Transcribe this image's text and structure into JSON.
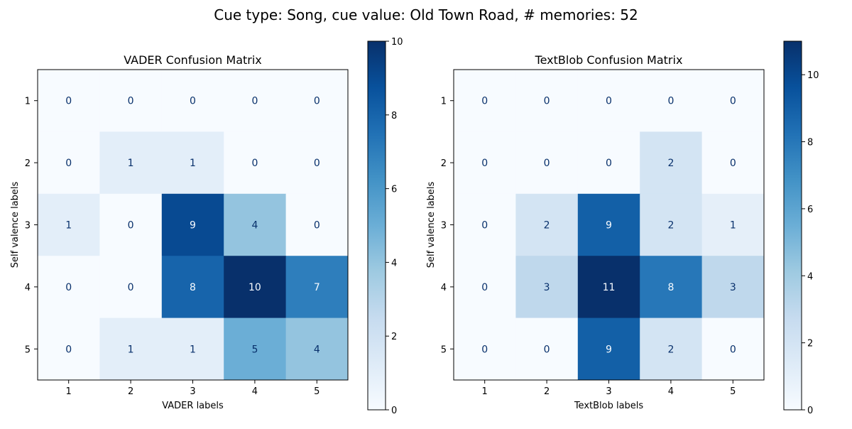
{
  "suptitle": "Cue type: Song, cue value: Old Town Road, # memories: 52",
  "chart_data": [
    {
      "type": "heatmap",
      "title": "VADER Confusion Matrix",
      "xlabel": "VADER labels",
      "ylabel": "Self valence labels",
      "x_categories": [
        "1",
        "2",
        "3",
        "4",
        "5"
      ],
      "y_categories": [
        "1",
        "2",
        "3",
        "4",
        "5"
      ],
      "values": [
        [
          0,
          0,
          0,
          0,
          0
        ],
        [
          0,
          1,
          1,
          0,
          0
        ],
        [
          1,
          0,
          9,
          4,
          0
        ],
        [
          0,
          0,
          8,
          10,
          7
        ],
        [
          0,
          1,
          1,
          5,
          4
        ]
      ],
      "colorscale": "Blues",
      "color_range": [
        0,
        10
      ],
      "colorbar_ticks": [
        "0",
        "2",
        "4",
        "6",
        "8",
        "10"
      ],
      "grid": false
    },
    {
      "type": "heatmap",
      "title": "TextBlob Confusion Matrix",
      "xlabel": "TextBlob labels",
      "ylabel": "Self valence labels",
      "x_categories": [
        "1",
        "2",
        "3",
        "4",
        "5"
      ],
      "y_categories": [
        "1",
        "2",
        "3",
        "4",
        "5"
      ],
      "values": [
        [
          0,
          0,
          0,
          0,
          0
        ],
        [
          0,
          0,
          0,
          2,
          0
        ],
        [
          0,
          2,
          9,
          2,
          1
        ],
        [
          0,
          3,
          11,
          8,
          3
        ],
        [
          0,
          0,
          9,
          2,
          0
        ]
      ],
      "colorscale": "Blues",
      "color_range": [
        0,
        11
      ],
      "colorbar_ticks": [
        "0",
        "2",
        "4",
        "6",
        "8",
        "10"
      ],
      "grid": false
    }
  ]
}
